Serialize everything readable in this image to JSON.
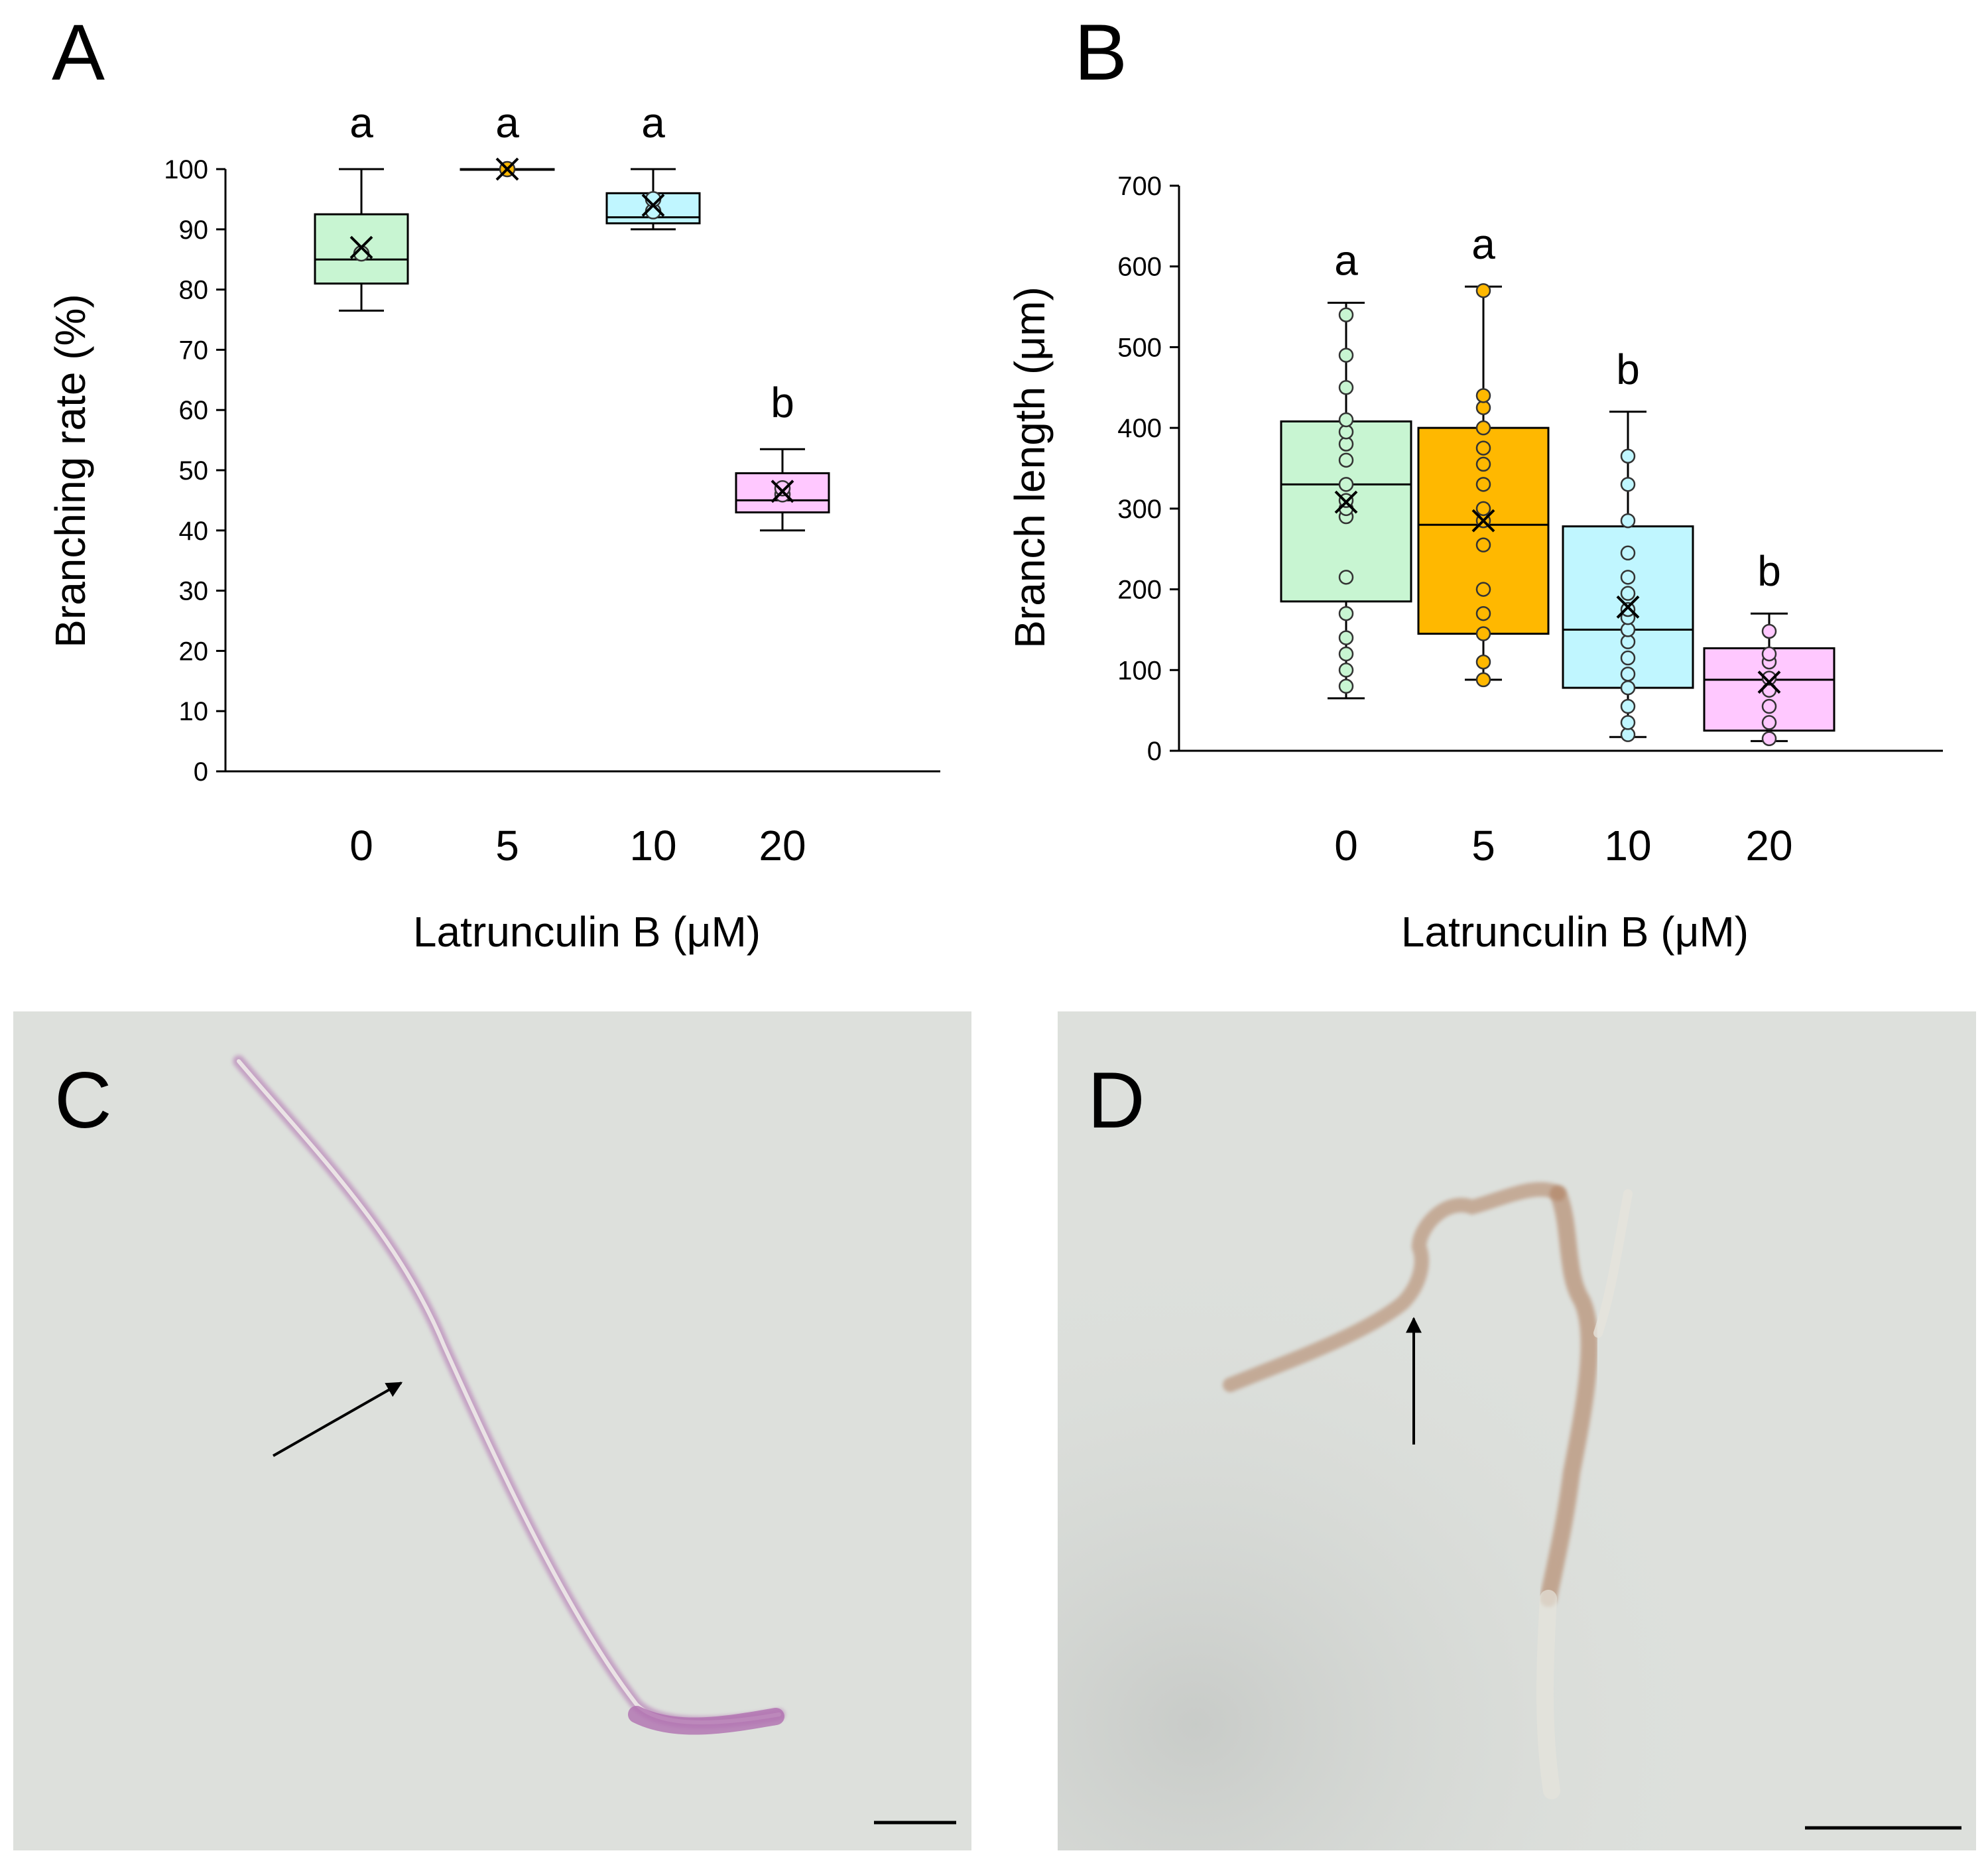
{
  "panels": {
    "A": {
      "letter": "A"
    },
    "B": {
      "letter": "B"
    },
    "C": {
      "letter": "C"
    },
    "D": {
      "letter": "D"
    }
  },
  "micrograph_colors": {
    "background": "#dde0dc",
    "stain_c": "#b070b0",
    "stain_d": "#b08060"
  },
  "chart_data": [
    {
      "panel": "A",
      "type": "box",
      "ylabel": "Branching rate (%)",
      "xlabel": "Latrunculin B  (μM)",
      "ylim": [
        0,
        100
      ],
      "yticks": [
        0,
        10,
        20,
        30,
        40,
        50,
        60,
        70,
        80,
        90,
        100
      ],
      "categories": [
        "0",
        "5",
        "10",
        "20"
      ],
      "colors": [
        "#c8f5d2",
        "#ffb800",
        "#c0f6ff",
        "#ffc8ff"
      ],
      "boxes": [
        {
          "min": 76.5,
          "q1": 81,
          "median": 85,
          "q3": 92.5,
          "max": 100,
          "mean": 87,
          "points": [
            86
          ]
        },
        {
          "min": 100,
          "q1": 100,
          "median": 100,
          "q3": 100,
          "max": 100,
          "mean": 100,
          "points": [
            100
          ]
        },
        {
          "min": 90,
          "q1": 91,
          "median": 92,
          "q3": 96,
          "max": 100,
          "mean": 94,
          "points": [
            93,
            95
          ]
        },
        {
          "min": 40,
          "q1": 43,
          "median": 45,
          "q3": 49.5,
          "max": 53.5,
          "mean": 46.5,
          "points": [
            46,
            47
          ]
        }
      ],
      "significance": [
        "a",
        "a",
        "a",
        "b"
      ]
    },
    {
      "panel": "B",
      "type": "box",
      "ylabel": "Branch length  (μm)",
      "xlabel": "Latrunculin B  (μM)",
      "ylim": [
        0,
        700
      ],
      "yticks": [
        0,
        100,
        200,
        300,
        400,
        500,
        600,
        700
      ],
      "categories": [
        "0",
        "5",
        "10",
        "20"
      ],
      "colors": [
        "#c8f5d2",
        "#ffb800",
        "#c0f6ff",
        "#ffc8ff"
      ],
      "boxes": [
        {
          "min": 65,
          "q1": 185,
          "median": 330,
          "q3": 408,
          "max": 555,
          "mean": 308,
          "points": [
            80,
            100,
            120,
            140,
            170,
            215,
            290,
            300,
            310,
            330,
            360,
            380,
            395,
            410,
            450,
            490,
            540
          ]
        },
        {
          "min": 88,
          "q1": 145,
          "median": 280,
          "q3": 400,
          "max": 575,
          "mean": 285,
          "points": [
            88,
            110,
            145,
            170,
            200,
            255,
            285,
            300,
            330,
            355,
            375,
            400,
            425,
            440,
            570
          ]
        },
        {
          "min": 17,
          "q1": 78,
          "median": 150,
          "q3": 278,
          "max": 420,
          "mean": 178,
          "points": [
            20,
            35,
            55,
            78,
            95,
            115,
            135,
            150,
            165,
            175,
            195,
            215,
            245,
            285,
            330,
            365
          ]
        },
        {
          "min": 12,
          "q1": 25,
          "median": 88,
          "q3": 127,
          "max": 170,
          "mean": 85,
          "points": [
            15,
            35,
            55,
            75,
            90,
            110,
            120,
            148
          ]
        }
      ],
      "significance": [
        "a",
        "a",
        "b",
        "b"
      ]
    }
  ]
}
